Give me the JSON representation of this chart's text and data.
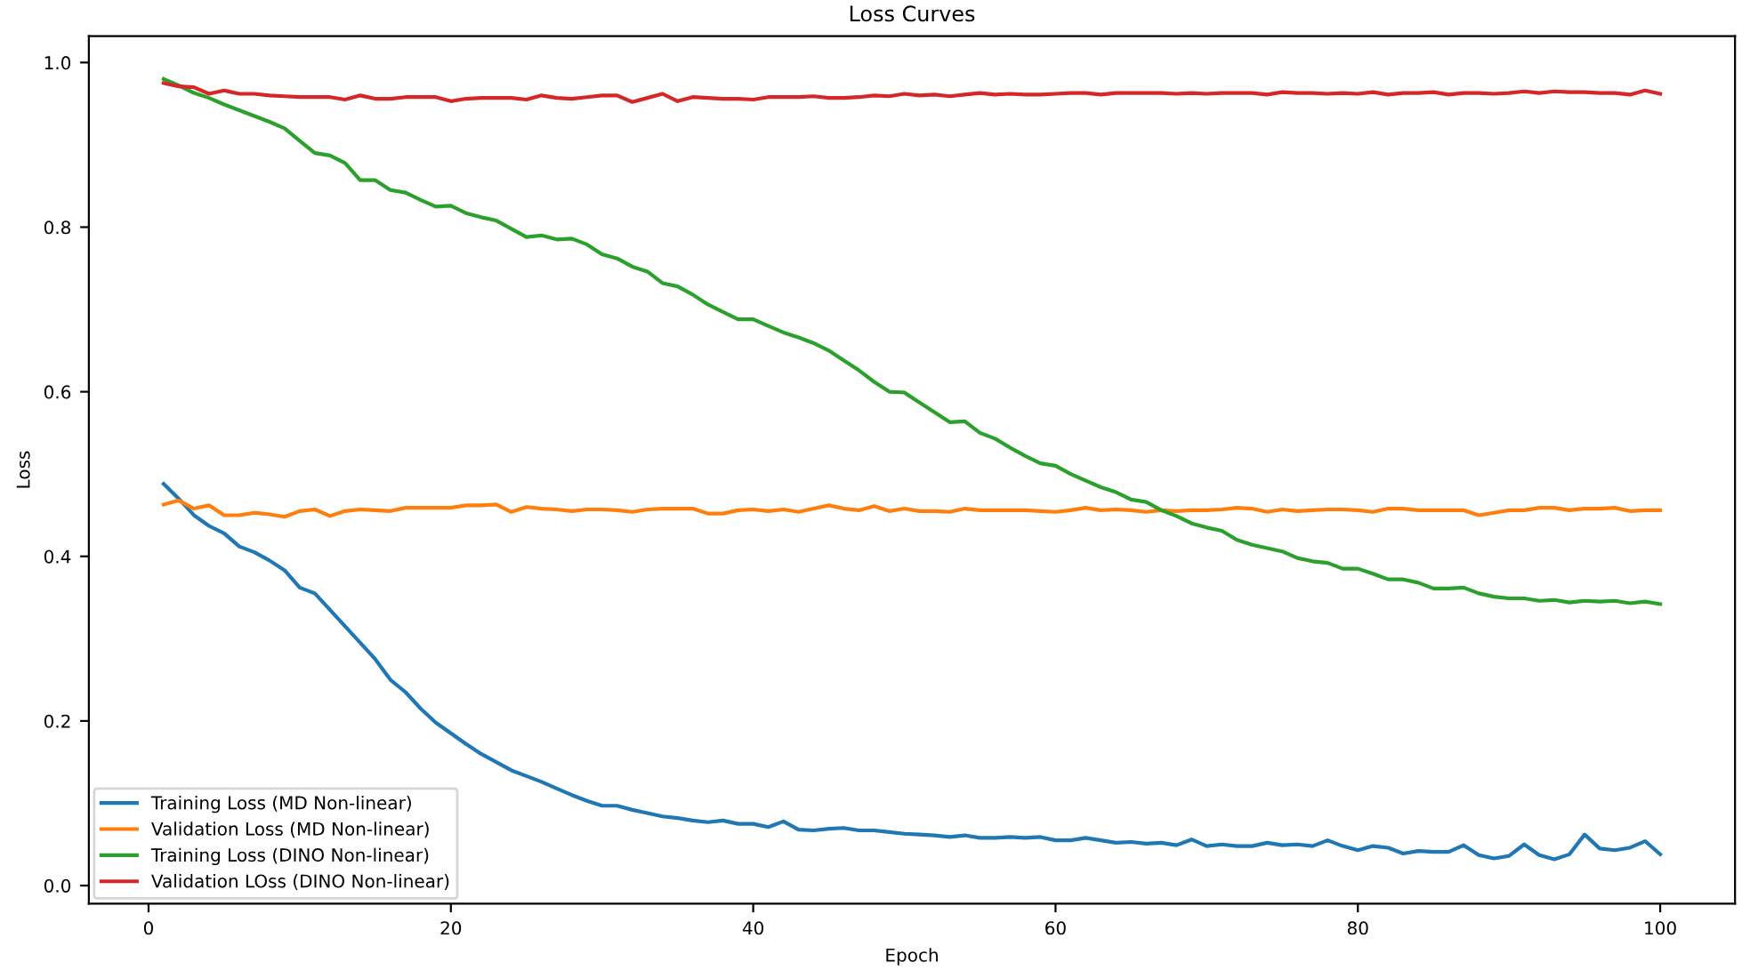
{
  "chart_data": {
    "type": "line",
    "title": "Loss Curves",
    "xlabel": "Epoch",
    "ylabel": "Loss",
    "x": [
      1,
      2,
      3,
      4,
      5,
      6,
      7,
      8,
      9,
      10,
      11,
      12,
      13,
      14,
      15,
      16,
      17,
      18,
      19,
      20,
      21,
      22,
      23,
      24,
      25,
      26,
      27,
      28,
      29,
      30,
      31,
      32,
      33,
      34,
      35,
      36,
      37,
      38,
      39,
      40,
      41,
      42,
      43,
      44,
      45,
      46,
      47,
      48,
      49,
      50,
      51,
      52,
      53,
      54,
      55,
      56,
      57,
      58,
      59,
      60,
      61,
      62,
      63,
      64,
      65,
      66,
      67,
      68,
      69,
      70,
      71,
      72,
      73,
      74,
      75,
      76,
      77,
      78,
      79,
      80,
      81,
      82,
      83,
      84,
      85,
      86,
      87,
      88,
      89,
      90,
      91,
      92,
      93,
      94,
      95,
      96,
      97,
      98,
      99,
      100
    ],
    "series": [
      {
        "name": "Training Loss (MD Non-linear)",
        "color": "#1f77b4",
        "values": [
          0.488,
          0.47,
          0.45,
          0.437,
          0.428,
          0.412,
          0.405,
          0.395,
          0.383,
          0.362,
          0.355,
          0.335,
          0.315,
          0.295,
          0.275,
          0.25,
          0.235,
          0.215,
          0.198,
          0.185,
          0.172,
          0.16,
          0.15,
          0.14,
          0.133,
          0.126,
          0.118,
          0.11,
          0.103,
          0.097,
          0.097,
          0.092,
          0.088,
          0.084,
          0.082,
          0.079,
          0.077,
          0.079,
          0.075,
          0.075,
          0.071,
          0.078,
          0.068,
          0.067,
          0.069,
          0.07,
          0.067,
          0.067,
          0.065,
          0.063,
          0.062,
          0.061,
          0.059,
          0.061,
          0.058,
          0.058,
          0.059,
          0.058,
          0.059,
          0.055,
          0.055,
          0.058,
          0.055,
          0.052,
          0.053,
          0.051,
          0.052,
          0.049,
          0.056,
          0.048,
          0.05,
          0.048,
          0.048,
          0.052,
          0.049,
          0.05,
          0.048,
          0.055,
          0.048,
          0.043,
          0.048,
          0.046,
          0.039,
          0.042,
          0.041,
          0.041,
          0.049,
          0.037,
          0.033,
          0.036,
          0.05,
          0.037,
          0.032,
          0.038,
          0.062,
          0.045,
          0.043,
          0.046,
          0.054,
          0.038
        ]
      },
      {
        "name": "Validation Loss (MD Non-linear)",
        "color": "#ff7f0e",
        "values": [
          0.463,
          0.468,
          0.458,
          0.462,
          0.45,
          0.45,
          0.453,
          0.451,
          0.448,
          0.455,
          0.457,
          0.449,
          0.455,
          0.457,
          0.456,
          0.455,
          0.459,
          0.459,
          0.459,
          0.459,
          0.462,
          0.462,
          0.463,
          0.454,
          0.46,
          0.458,
          0.457,
          0.455,
          0.457,
          0.457,
          0.456,
          0.454,
          0.457,
          0.458,
          0.458,
          0.458,
          0.452,
          0.452,
          0.456,
          0.457,
          0.455,
          0.457,
          0.454,
          0.458,
          0.462,
          0.458,
          0.456,
          0.461,
          0.455,
          0.458,
          0.455,
          0.455,
          0.454,
          0.458,
          0.456,
          0.456,
          0.456,
          0.456,
          0.455,
          0.454,
          0.456,
          0.459,
          0.456,
          0.457,
          0.456,
          0.454,
          0.456,
          0.455,
          0.456,
          0.456,
          0.457,
          0.459,
          0.458,
          0.454,
          0.457,
          0.455,
          0.456,
          0.457,
          0.457,
          0.456,
          0.454,
          0.458,
          0.458,
          0.456,
          0.456,
          0.456,
          0.456,
          0.45,
          0.453,
          0.456,
          0.456,
          0.459,
          0.459,
          0.456,
          0.458,
          0.458,
          0.459,
          0.455,
          0.456,
          0.456
        ]
      },
      {
        "name": "Training Loss (DINO Non-linear)",
        "color": "#2ca02c",
        "values": [
          0.98,
          0.972,
          0.963,
          0.957,
          0.949,
          0.942,
          0.935,
          0.928,
          0.92,
          0.905,
          0.89,
          0.887,
          0.878,
          0.857,
          0.857,
          0.845,
          0.842,
          0.833,
          0.825,
          0.826,
          0.817,
          0.812,
          0.808,
          0.798,
          0.788,
          0.79,
          0.785,
          0.786,
          0.779,
          0.767,
          0.762,
          0.752,
          0.746,
          0.732,
          0.728,
          0.718,
          0.706,
          0.697,
          0.688,
          0.688,
          0.68,
          0.672,
          0.666,
          0.659,
          0.65,
          0.638,
          0.626,
          0.612,
          0.6,
          0.599,
          0.587,
          0.575,
          0.563,
          0.564,
          0.55,
          0.543,
          0.532,
          0.522,
          0.513,
          0.51,
          0.5,
          0.492,
          0.484,
          0.478,
          0.469,
          0.466,
          0.456,
          0.449,
          0.44,
          0.435,
          0.431,
          0.42,
          0.414,
          0.41,
          0.406,
          0.398,
          0.394,
          0.392,
          0.385,
          0.385,
          0.379,
          0.372,
          0.372,
          0.368,
          0.361,
          0.361,
          0.362,
          0.355,
          0.351,
          0.349,
          0.349,
          0.346,
          0.347,
          0.344,
          0.346,
          0.345,
          0.346,
          0.343,
          0.345,
          0.342
        ]
      },
      {
        "name": "Validation LOss (DINO Non-linear)",
        "color": "#d62728",
        "values": [
          0.975,
          0.971,
          0.97,
          0.962,
          0.966,
          0.962,
          0.962,
          0.96,
          0.959,
          0.958,
          0.958,
          0.958,
          0.955,
          0.96,
          0.956,
          0.956,
          0.958,
          0.958,
          0.958,
          0.953,
          0.956,
          0.957,
          0.957,
          0.957,
          0.955,
          0.96,
          0.957,
          0.956,
          0.958,
          0.96,
          0.96,
          0.952,
          0.957,
          0.962,
          0.953,
          0.958,
          0.957,
          0.956,
          0.956,
          0.955,
          0.958,
          0.958,
          0.958,
          0.959,
          0.957,
          0.957,
          0.958,
          0.96,
          0.959,
          0.962,
          0.96,
          0.961,
          0.959,
          0.961,
          0.963,
          0.961,
          0.962,
          0.961,
          0.961,
          0.962,
          0.963,
          0.963,
          0.961,
          0.963,
          0.963,
          0.963,
          0.963,
          0.962,
          0.963,
          0.962,
          0.963,
          0.963,
          0.963,
          0.961,
          0.964,
          0.963,
          0.963,
          0.962,
          0.963,
          0.962,
          0.964,
          0.961,
          0.963,
          0.963,
          0.964,
          0.961,
          0.963,
          0.963,
          0.962,
          0.963,
          0.965,
          0.963,
          0.965,
          0.964,
          0.964,
          0.963,
          0.963,
          0.961,
          0.966,
          0.962
        ]
      }
    ],
    "xlim": [
      -3.95,
      104.95
    ],
    "xticks": [
      0,
      20,
      40,
      60,
      80,
      100
    ],
    "ylim": [
      -0.022,
      1.032
    ],
    "yticks": [
      {
        "value": 0.0,
        "label": "0.0"
      },
      {
        "value": 0.2,
        "label": "0.2"
      },
      {
        "value": 0.4,
        "label": "0.4"
      },
      {
        "value": 0.6,
        "label": "0.6"
      },
      {
        "value": 0.8,
        "label": "0.8"
      },
      {
        "value": 1.0,
        "label": "1.0"
      }
    ],
    "legend": "bottom left",
    "grid": false,
    "marker": "none",
    "line_style": "solid"
  }
}
